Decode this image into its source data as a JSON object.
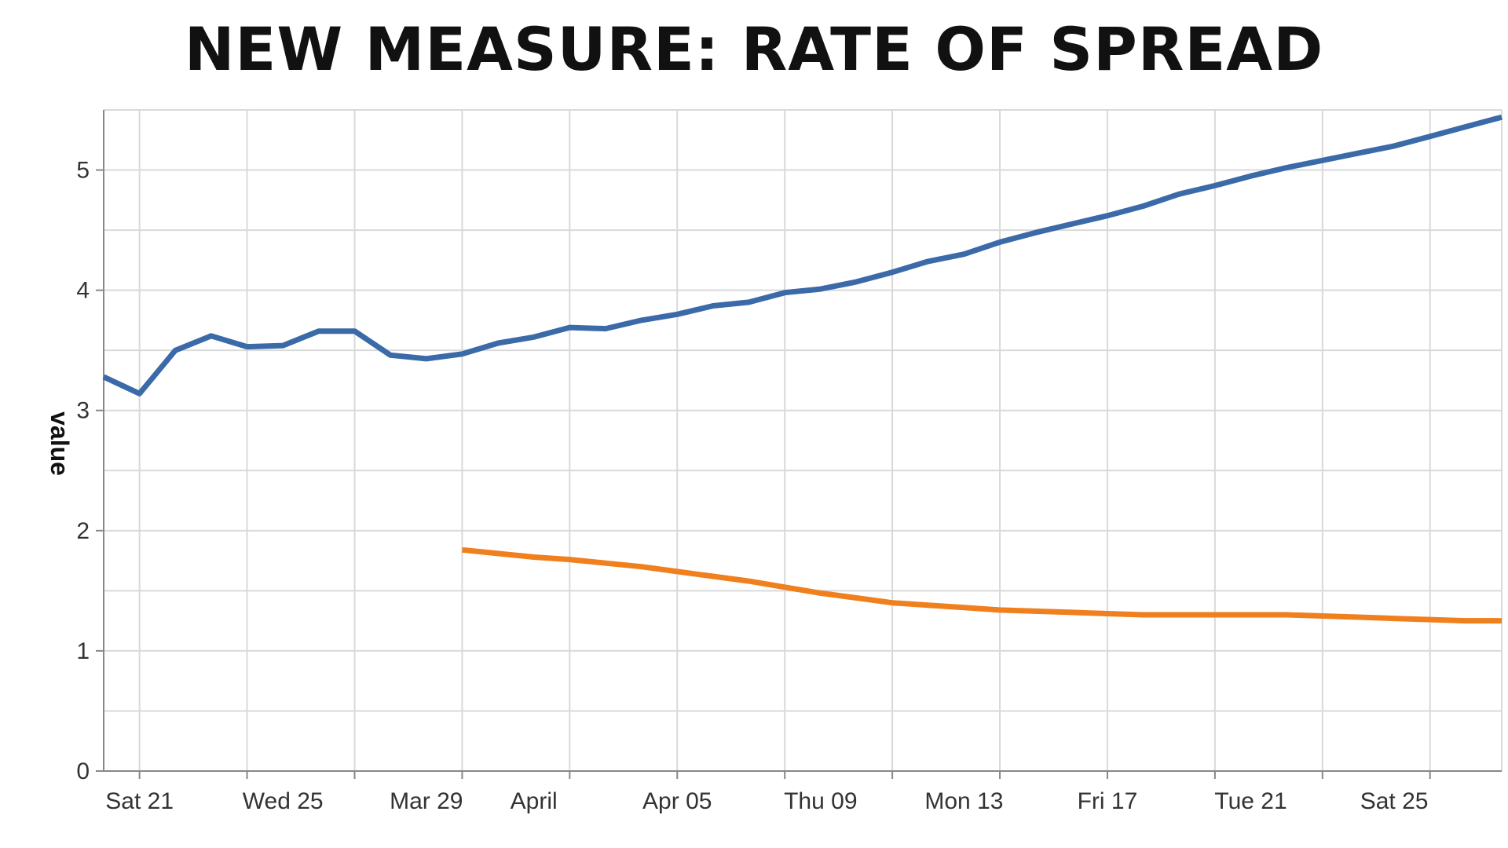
{
  "chart_data": {
    "type": "line",
    "title": "NEW MEASURE: RATE OF SPREAD",
    "ylabel": "value",
    "xlabel": "",
    "ylim": [
      0,
      5.5
    ],
    "yticks": [
      0,
      1,
      2,
      3,
      4,
      5
    ],
    "xlim": [
      "2020-03-20",
      "2020-04-28"
    ],
    "xticks": [
      {
        "date": "2020-03-21",
        "label": "Sat 21"
      },
      {
        "date": "2020-03-25",
        "label": "Wed 25"
      },
      {
        "date": "2020-03-29",
        "label": "Mar 29"
      },
      {
        "date": "2020-04-01",
        "label": "April"
      },
      {
        "date": "2020-04-05",
        "label": "Apr 05"
      },
      {
        "date": "2020-04-09",
        "label": "Thu 09"
      },
      {
        "date": "2020-04-13",
        "label": "Mon 13"
      },
      {
        "date": "2020-04-17",
        "label": "Fri 17"
      },
      {
        "date": "2020-04-21",
        "label": "Tue 21"
      },
      {
        "date": "2020-04-25",
        "label": "Sat 25"
      }
    ],
    "grid": true,
    "series": [
      {
        "color": "#3b6aa8",
        "x": [
          "2020-03-20",
          "2020-03-21",
          "2020-03-22",
          "2020-03-23",
          "2020-03-24",
          "2020-03-25",
          "2020-03-26",
          "2020-03-27",
          "2020-03-28",
          "2020-03-29",
          "2020-03-30",
          "2020-03-31",
          "2020-04-01",
          "2020-04-02",
          "2020-04-03",
          "2020-04-04",
          "2020-04-05",
          "2020-04-06",
          "2020-04-07",
          "2020-04-08",
          "2020-04-09",
          "2020-04-10",
          "2020-04-11",
          "2020-04-12",
          "2020-04-13",
          "2020-04-14",
          "2020-04-15",
          "2020-04-16",
          "2020-04-17",
          "2020-04-18",
          "2020-04-19",
          "2020-04-20",
          "2020-04-21",
          "2020-04-22",
          "2020-04-23",
          "2020-04-24",
          "2020-04-25",
          "2020-04-26",
          "2020-04-27",
          "2020-04-28"
        ],
        "y": [
          3.28,
          3.14,
          3.5,
          3.62,
          3.53,
          3.54,
          3.66,
          3.66,
          3.46,
          3.43,
          3.47,
          3.56,
          3.61,
          3.69,
          3.68,
          3.75,
          3.8,
          3.87,
          3.9,
          3.98,
          4.01,
          4.07,
          4.15,
          4.24,
          4.3,
          4.4,
          4.48,
          4.55,
          4.62,
          4.7,
          4.8,
          4.87,
          4.95,
          5.02,
          5.08,
          5.14,
          5.2,
          5.28,
          5.36,
          5.44
        ]
      },
      {
        "color": "#f07f1e",
        "x": [
          "2020-03-30",
          "2020-03-31",
          "2020-04-01",
          "2020-04-02",
          "2020-04-03",
          "2020-04-04",
          "2020-04-05",
          "2020-04-06",
          "2020-04-07",
          "2020-04-08",
          "2020-04-09",
          "2020-04-10",
          "2020-04-11",
          "2020-04-12",
          "2020-04-13",
          "2020-04-14",
          "2020-04-15",
          "2020-04-16",
          "2020-04-17",
          "2020-04-18",
          "2020-04-19",
          "2020-04-20",
          "2020-04-21",
          "2020-04-22",
          "2020-04-23",
          "2020-04-24",
          "2020-04-25",
          "2020-04-26",
          "2020-04-27",
          "2020-04-28"
        ],
        "y": [
          1.84,
          1.81,
          1.78,
          1.76,
          1.73,
          1.7,
          1.66,
          1.62,
          1.58,
          1.53,
          1.48,
          1.44,
          1.4,
          1.38,
          1.36,
          1.34,
          1.33,
          1.32,
          1.31,
          1.3,
          1.3,
          1.3,
          1.3,
          1.3,
          1.29,
          1.28,
          1.27,
          1.26,
          1.25,
          1.25
        ]
      }
    ]
  }
}
